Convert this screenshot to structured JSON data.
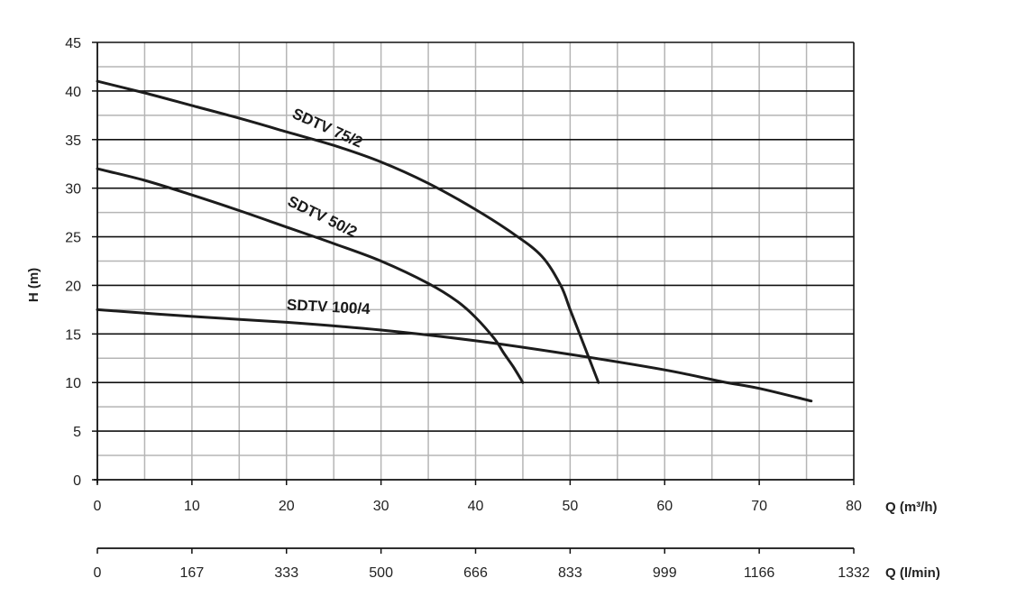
{
  "chart_data": {
    "type": "line",
    "ylabel": "H (m)",
    "xlabel": "Q (m³/h)",
    "xlabel_secondary": "Q (l/min)",
    "xlim": [
      0,
      80
    ],
    "ylim": [
      0,
      45
    ],
    "x_ticks": [
      "0",
      "10",
      "20",
      "30",
      "40",
      "50",
      "60",
      "70",
      "80"
    ],
    "y_ticks": [
      "0",
      "5",
      "10",
      "15",
      "20",
      "25",
      "30",
      "35",
      "40",
      "45"
    ],
    "x_secondary_ticks": [
      "0",
      "167",
      "333",
      "500",
      "666",
      "833",
      "999",
      "1166",
      "1332"
    ],
    "grid": true,
    "series": [
      {
        "name": "SDTV 75/2",
        "x": [
          0,
          5,
          10,
          15,
          20,
          25,
          30,
          35,
          40,
          44,
          47,
          49,
          50,
          51,
          52,
          53
        ],
        "y": [
          41,
          39.8,
          38.5,
          37.2,
          35.8,
          34.4,
          32.7,
          30.5,
          27.8,
          25.3,
          23,
          20,
          17.5,
          15,
          12.5,
          10
        ]
      },
      {
        "name": "SDTV 50/2",
        "x": [
          0,
          5,
          10,
          15,
          20,
          25,
          30,
          35,
          38,
          40,
          42,
          43,
          44,
          45
        ],
        "y": [
          32,
          30.8,
          29.3,
          27.7,
          26,
          24.3,
          22.5,
          20.2,
          18.4,
          16.7,
          14.5,
          13,
          11.6,
          10
        ]
      },
      {
        "name": "SDTV 100/4",
        "x": [
          0,
          10,
          20,
          30,
          40,
          50,
          60,
          66,
          70,
          75.5
        ],
        "y": [
          17.5,
          16.8,
          16.2,
          15.4,
          14.3,
          12.9,
          11.3,
          10.1,
          9.4,
          8.1
        ]
      }
    ]
  }
}
